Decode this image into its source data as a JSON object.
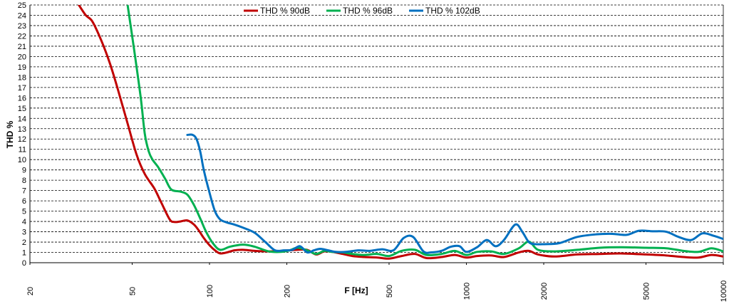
{
  "chart_data": {
    "type": "line",
    "title": "",
    "xlabel": "F [Hz]",
    "ylabel": "THD %",
    "x_scale": "log",
    "xlim": [
      20,
      10000
    ],
    "ylim": [
      0,
      25
    ],
    "grid": true,
    "legend_position": "top-center",
    "x_ticks": [
      20,
      50,
      100,
      200,
      500,
      1000,
      2000,
      5000,
      10000
    ],
    "x_tick_labels": [
      "20",
      "50",
      "100",
      "200",
      "500",
      "1000",
      "2000",
      "5000",
      "10000"
    ],
    "y_ticks": [
      0,
      1,
      2,
      3,
      4,
      5,
      6,
      7,
      8,
      9,
      10,
      11,
      12,
      13,
      14,
      15,
      16,
      17,
      18,
      19,
      20,
      21,
      22,
      23,
      24,
      25
    ],
    "y_tick_labels": [
      "0",
      "1",
      "2",
      "3",
      "4",
      "5",
      "6",
      "7",
      "8",
      "9",
      "10",
      "11",
      "12",
      "13",
      "14",
      "15",
      "16",
      "17",
      "18",
      "19",
      "20",
      "21",
      "22",
      "23",
      "24",
      "25"
    ],
    "series": [
      {
        "name": "THD % 90dB",
        "color": "#c00000",
        "x": [
          31,
          33,
          35,
          38,
          41,
          44,
          48,
          52,
          56,
          61,
          65,
          70,
          73,
          77,
          82,
          87,
          91,
          95,
          100,
          105,
          110,
          117,
          125,
          135,
          150,
          170,
          190,
          205,
          220,
          240,
          260,
          280,
          300,
          330,
          360,
          400,
          450,
          500,
          560,
          630,
          700,
          800,
          900,
          1000,
          1100,
          1250,
          1400,
          1600,
          1750,
          1900,
          2200,
          2700,
          3300,
          4000,
          5000,
          6000,
          7000,
          8000,
          9000,
          10000
        ],
        "y": [
          25,
          24,
          23.4,
          21.5,
          19.3,
          16.8,
          13.5,
          10.5,
          8.6,
          7.2,
          5.8,
          4.2,
          3.95,
          4.0,
          4.1,
          3.7,
          3.1,
          2.4,
          1.7,
          1.2,
          0.9,
          1.0,
          1.2,
          1.25,
          1.15,
          1.1,
          1.15,
          1.2,
          1.25,
          1.25,
          0.8,
          1.1,
          1.05,
          0.85,
          0.65,
          0.55,
          0.5,
          0.4,
          0.65,
          0.85,
          0.45,
          0.55,
          0.75,
          0.5,
          0.65,
          0.7,
          0.55,
          1.0,
          1.15,
          0.8,
          0.6,
          0.8,
          0.85,
          0.9,
          0.8,
          0.7,
          0.55,
          0.5,
          0.75,
          0.6
        ]
      },
      {
        "name": "THD % 96dB",
        "color": "#00b050",
        "x": [
          48,
          51,
          54,
          56,
          58,
          60,
          63,
          67,
          71,
          77,
          82,
          87,
          92,
          97,
          103,
          110,
          120,
          135,
          150,
          170,
          190,
          205,
          220,
          240,
          260,
          280,
          300,
          330,
          360,
          400,
          450,
          500,
          560,
          630,
          700,
          800,
          900,
          1000,
          1100,
          1250,
          1400,
          1600,
          1750,
          1900,
          2200,
          2700,
          3300,
          4000,
          5000,
          6000,
          7000,
          8000,
          9000,
          10000
        ],
        "y": [
          25,
          20.5,
          16,
          12.5,
          10.8,
          10,
          9.3,
          8.2,
          7.1,
          6.9,
          6.6,
          5.6,
          4.3,
          3.0,
          1.9,
          1.25,
          1.55,
          1.75,
          1.55,
          1.1,
          1.05,
          1.2,
          1.45,
          1.2,
          0.85,
          1.15,
          1.05,
          1.0,
          0.85,
          0.75,
          0.85,
          0.65,
          1.15,
          1.25,
          0.75,
          0.85,
          1.15,
          0.75,
          1.05,
          1.1,
          0.85,
          1.4,
          2.05,
          1.25,
          1.1,
          1.25,
          1.45,
          1.5,
          1.45,
          1.4,
          1.15,
          1.05,
          1.4,
          1.1
        ]
      },
      {
        "name": "THD % 102dB",
        "color": "#0070c0",
        "x": [
          82,
          86,
          89,
          92,
          95,
          100,
          105,
          110,
          117,
          125,
          135,
          150,
          165,
          180,
          195,
          210,
          225,
          240,
          255,
          270,
          290,
          310,
          340,
          380,
          420,
          470,
          520,
          570,
          620,
          680,
          730,
          800,
          870,
          940,
          1000,
          1100,
          1200,
          1300,
          1400,
          1550,
          1650,
          1750,
          1850,
          2000,
          2300,
          2700,
          3200,
          3700,
          4200,
          4700,
          5300,
          6000,
          6700,
          7500,
          8300,
          9200,
          10000
        ],
        "y": [
          12.4,
          12.4,
          12.0,
          10.8,
          9.0,
          6.8,
          5.0,
          4.2,
          3.9,
          3.7,
          3.4,
          2.9,
          2.0,
          1.2,
          1.2,
          1.25,
          1.6,
          1.0,
          1.2,
          1.35,
          1.2,
          1.05,
          1.05,
          1.2,
          1.15,
          1.3,
          1.2,
          2.4,
          2.5,
          1.1,
          1.0,
          1.15,
          1.55,
          1.6,
          1.05,
          1.5,
          2.2,
          1.6,
          2.2,
          3.7,
          3.0,
          2.0,
          1.8,
          1.8,
          1.9,
          2.5,
          2.75,
          2.8,
          2.7,
          3.1,
          3.05,
          3.0,
          2.5,
          2.2,
          2.85,
          2.6,
          2.3
        ]
      }
    ]
  }
}
